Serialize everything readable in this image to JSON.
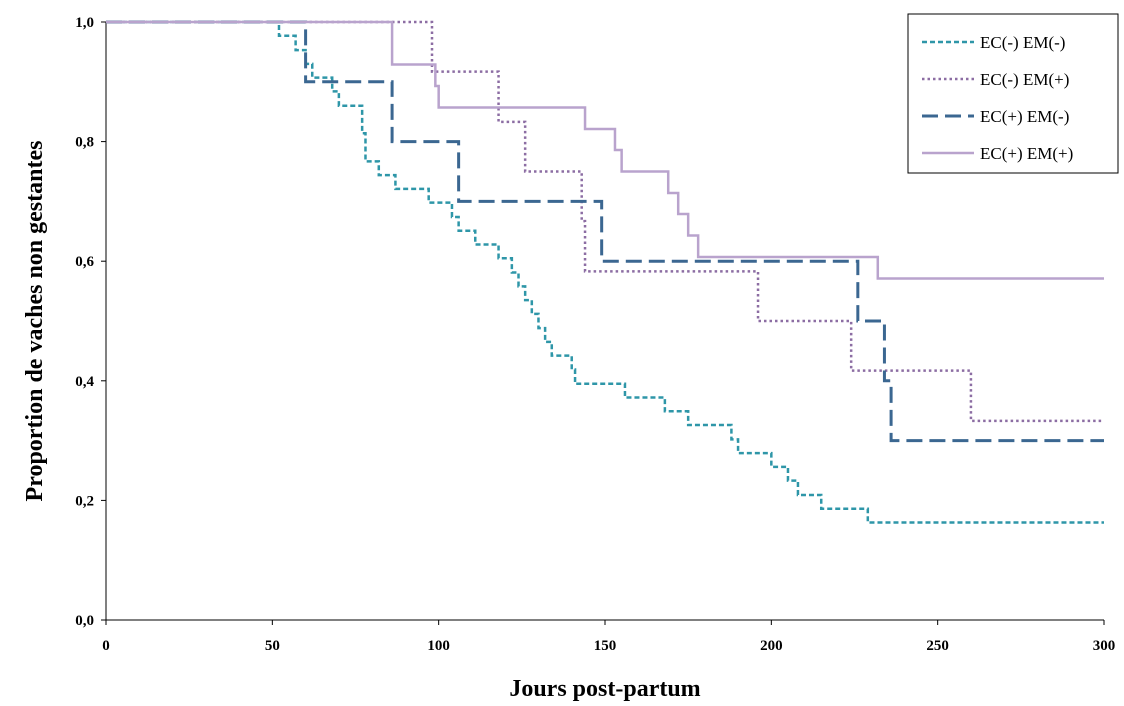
{
  "chart_data": {
    "type": "line",
    "step": true,
    "xlabel": "Jours post-partum",
    "ylabel": "Proportion de vaches non gestantes",
    "xlim": [
      0,
      300
    ],
    "ylim": [
      0,
      1
    ],
    "x_ticks": [
      0,
      50,
      100,
      150,
      200,
      250,
      300
    ],
    "x_tick_labels": [
      "0",
      "50",
      "100",
      "150",
      "200",
      "250",
      "300"
    ],
    "y_ticks": [
      0,
      0.2,
      0.4,
      0.6,
      0.8,
      1.0
    ],
    "y_tick_labels": [
      "0,0",
      "0,2",
      "0,4",
      "0,6",
      "0,8",
      "1,0"
    ],
    "grid": false,
    "legend_position": "top-right",
    "series": [
      {
        "name": "EC(-) EM(-)",
        "color": "#2E96A8",
        "dash": "dashed-short",
        "points": [
          [
            0,
            1.0
          ],
          [
            52,
            1.0
          ],
          [
            52,
            0.977
          ],
          [
            57,
            0.977
          ],
          [
            57,
            0.953
          ],
          [
            60,
            0.953
          ],
          [
            60,
            0.93
          ],
          [
            62,
            0.93
          ],
          [
            62,
            0.907
          ],
          [
            68,
            0.907
          ],
          [
            68,
            0.884
          ],
          [
            70,
            0.884
          ],
          [
            70,
            0.86
          ],
          [
            77,
            0.86
          ],
          [
            77,
            0.814
          ],
          [
            78,
            0.814
          ],
          [
            78,
            0.767
          ],
          [
            82,
            0.767
          ],
          [
            82,
            0.744
          ],
          [
            87,
            0.744
          ],
          [
            87,
            0.721
          ],
          [
            97,
            0.721
          ],
          [
            97,
            0.698
          ],
          [
            104,
            0.698
          ],
          [
            104,
            0.674
          ],
          [
            106,
            0.674
          ],
          [
            106,
            0.651
          ],
          [
            111,
            0.651
          ],
          [
            111,
            0.628
          ],
          [
            118,
            0.628
          ],
          [
            118,
            0.605
          ],
          [
            122,
            0.605
          ],
          [
            122,
            0.581
          ],
          [
            124,
            0.581
          ],
          [
            124,
            0.558
          ],
          [
            126,
            0.558
          ],
          [
            126,
            0.535
          ],
          [
            128,
            0.535
          ],
          [
            128,
            0.512
          ],
          [
            130,
            0.512
          ],
          [
            130,
            0.488
          ],
          [
            132,
            0.488
          ],
          [
            132,
            0.465
          ],
          [
            134,
            0.465
          ],
          [
            134,
            0.442
          ],
          [
            140,
            0.442
          ],
          [
            140,
            0.419
          ],
          [
            141,
            0.419
          ],
          [
            141,
            0.395
          ],
          [
            156,
            0.395
          ],
          [
            156,
            0.372
          ],
          [
            168,
            0.372
          ],
          [
            168,
            0.349
          ],
          [
            175,
            0.349
          ],
          [
            175,
            0.326
          ],
          [
            188,
            0.326
          ],
          [
            188,
            0.302
          ],
          [
            190,
            0.302
          ],
          [
            190,
            0.279
          ],
          [
            200,
            0.279
          ],
          [
            200,
            0.256
          ],
          [
            205,
            0.256
          ],
          [
            205,
            0.233
          ],
          [
            208,
            0.233
          ],
          [
            208,
            0.209
          ],
          [
            215,
            0.209
          ],
          [
            215,
            0.186
          ],
          [
            229,
            0.186
          ],
          [
            229,
            0.163
          ],
          [
            300,
            0.163
          ]
        ]
      },
      {
        "name": "EC(-) EM(+)",
        "color": "#8C6DA3",
        "dash": "dotted",
        "points": [
          [
            0,
            1.0
          ],
          [
            98,
            1.0
          ],
          [
            98,
            0.917
          ],
          [
            118,
            0.917
          ],
          [
            118,
            0.833
          ],
          [
            126,
            0.833
          ],
          [
            126,
            0.75
          ],
          [
            143,
            0.75
          ],
          [
            143,
            0.667
          ],
          [
            144,
            0.667
          ],
          [
            144,
            0.583
          ],
          [
            196,
            0.583
          ],
          [
            196,
            0.5
          ],
          [
            224,
            0.5
          ],
          [
            224,
            0.417
          ],
          [
            260,
            0.417
          ],
          [
            260,
            0.333
          ],
          [
            300,
            0.333
          ]
        ]
      },
      {
        "name": "EC(+) EM(-)",
        "color": "#3B6791",
        "dash": "dashed-long",
        "points": [
          [
            0,
            1.0
          ],
          [
            60,
            1.0
          ],
          [
            60,
            0.9
          ],
          [
            86,
            0.9
          ],
          [
            86,
            0.8
          ],
          [
            106,
            0.8
          ],
          [
            106,
            0.7
          ],
          [
            149,
            0.7
          ],
          [
            149,
            0.6
          ],
          [
            226,
            0.6
          ],
          [
            226,
            0.5
          ],
          [
            234,
            0.5
          ],
          [
            234,
            0.4
          ],
          [
            236,
            0.4
          ],
          [
            236,
            0.3
          ],
          [
            300,
            0.3
          ]
        ]
      },
      {
        "name": "EC(+) EM(+)",
        "color": "#B9A3CD",
        "dash": "solid",
        "points": [
          [
            0,
            1.0
          ],
          [
            86,
            1.0
          ],
          [
            86,
            0.929
          ],
          [
            99,
            0.929
          ],
          [
            99,
            0.893
          ],
          [
            100,
            0.893
          ],
          [
            100,
            0.857
          ],
          [
            144,
            0.857
          ],
          [
            144,
            0.821
          ],
          [
            153,
            0.821
          ],
          [
            153,
            0.786
          ],
          [
            155,
            0.786
          ],
          [
            155,
            0.75
          ],
          [
            169,
            0.75
          ],
          [
            169,
            0.714
          ],
          [
            172,
            0.714
          ],
          [
            172,
            0.679
          ],
          [
            175,
            0.679
          ],
          [
            175,
            0.643
          ],
          [
            178,
            0.643
          ],
          [
            178,
            0.607
          ],
          [
            232,
            0.607
          ],
          [
            232,
            0.571
          ],
          [
            300,
            0.571
          ]
        ]
      }
    ]
  }
}
